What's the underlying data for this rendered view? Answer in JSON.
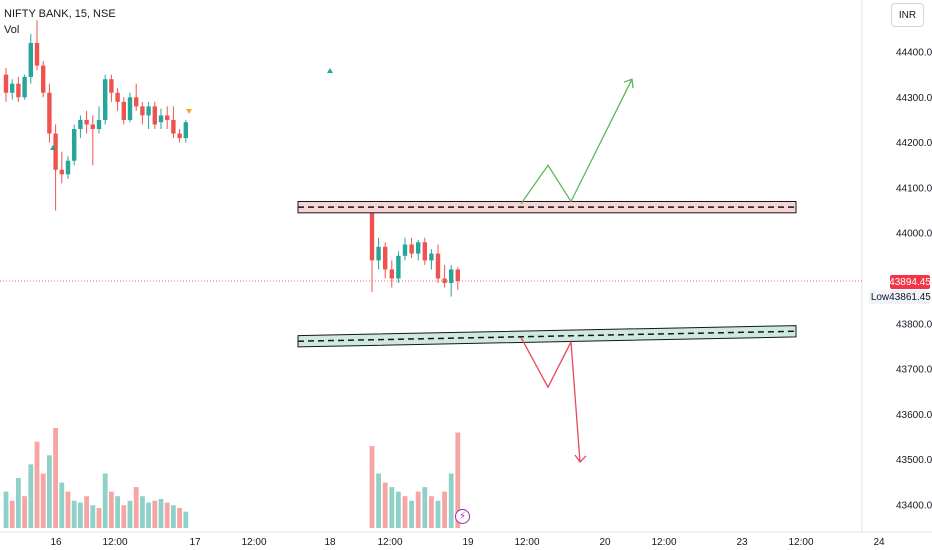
{
  "header": {
    "symbol_line": "NIFTY BANK, 15, NSE",
    "volume_label": "Vol"
  },
  "currency_button": "INR",
  "price_axis": {
    "ticks": [
      "44400.00",
      "44300.00",
      "44200.00",
      "44100.00",
      "44000.00",
      "43800.00",
      "43700.00",
      "43600.00",
      "43500.00",
      "43400.00"
    ],
    "current_price": "43894.45",
    "low_label": "Low",
    "low_price": "43861.45"
  },
  "time_axis": {
    "ticks": [
      "16",
      "12:00",
      "17",
      "12:00",
      "18",
      "12:00",
      "19",
      "12:00",
      "20",
      "12:00",
      "23",
      "12:00",
      "24"
    ]
  },
  "colors": {
    "up": "#26a69a",
    "down": "#ef5350",
    "vol_up": "#8fd1c9",
    "vol_down": "#f5a5a3",
    "resistance_fill": "#f7d4d4",
    "support_fill": "#cfe9dd",
    "bull_arrow": "#5cb85c",
    "bear_arrow": "#e8485a"
  },
  "chart_data": {
    "type": "candlestick",
    "title": "NIFTY BANK, 15, NSE",
    "y_range": [
      43350,
      44470
    ],
    "candles": [
      {
        "x": "16 09:15",
        "o": 44350,
        "h": 44365,
        "l": 44290,
        "c": 44310
      },
      {
        "x": "16 09:30",
        "o": 44310,
        "h": 44340,
        "l": 44295,
        "c": 44330
      },
      {
        "x": "16 09:45",
        "o": 44330,
        "h": 44345,
        "l": 44290,
        "c": 44300
      },
      {
        "x": "16 10:00",
        "o": 44300,
        "h": 44350,
        "l": 44295,
        "c": 44345
      },
      {
        "x": "16 10:15",
        "o": 44345,
        "h": 44440,
        "l": 44330,
        "c": 44420
      },
      {
        "x": "16 10:30",
        "o": 44420,
        "h": 44470,
        "l": 44360,
        "c": 44370
      },
      {
        "x": "16 10:45",
        "o": 44370,
        "h": 44380,
        "l": 44300,
        "c": 44310
      },
      {
        "x": "16 11:00",
        "o": 44310,
        "h": 44330,
        "l": 44200,
        "c": 44220
      },
      {
        "x": "16 11:15",
        "o": 44220,
        "h": 44240,
        "l": 44050,
        "c": 44140
      },
      {
        "x": "16 11:30",
        "o": 44140,
        "h": 44180,
        "l": 44110,
        "c": 44130
      },
      {
        "x": "16 11:45",
        "o": 44130,
        "h": 44170,
        "l": 44120,
        "c": 44160
      },
      {
        "x": "16 12:00",
        "o": 44160,
        "h": 44240,
        "l": 44150,
        "c": 44230
      },
      {
        "x": "16 12:15",
        "o": 44230,
        "h": 44260,
        "l": 44210,
        "c": 44250
      },
      {
        "x": "16 12:30",
        "o": 44250,
        "h": 44270,
        "l": 44220,
        "c": 44240
      },
      {
        "x": "16 12:45",
        "o": 44240,
        "h": 44260,
        "l": 44150,
        "c": 44230
      },
      {
        "x": "16 13:00",
        "o": 44230,
        "h": 44280,
        "l": 44220,
        "c": 44250
      },
      {
        "x": "16 13:15",
        "o": 44250,
        "h": 44350,
        "l": 44240,
        "c": 44340
      },
      {
        "x": "16 13:30",
        "o": 44340,
        "h": 44350,
        "l": 44290,
        "c": 44310
      },
      {
        "x": "16 13:45",
        "o": 44310,
        "h": 44320,
        "l": 44270,
        "c": 44290
      },
      {
        "x": "16 14:00",
        "o": 44290,
        "h": 44300,
        "l": 44240,
        "c": 44250
      },
      {
        "x": "16 14:15",
        "o": 44250,
        "h": 44310,
        "l": 44245,
        "c": 44300
      },
      {
        "x": "16 14:30",
        "o": 44300,
        "h": 44330,
        "l": 44270,
        "c": 44280
      },
      {
        "x": "16 14:45",
        "o": 44280,
        "h": 44290,
        "l": 44240,
        "c": 44260
      },
      {
        "x": "16 15:00",
        "o": 44260,
        "h": 44290,
        "l": 44230,
        "c": 44280
      },
      {
        "x": "16 15:15",
        "o": 44280,
        "h": 44290,
        "l": 44230,
        "c": 44240
      },
      {
        "x": "17 09:15",
        "o": 44245,
        "h": 44275,
        "l": 44230,
        "c": 44260
      },
      {
        "x": "17 09:30",
        "o": 44260,
        "h": 44280,
        "l": 44230,
        "c": 44250
      },
      {
        "x": "17 09:45",
        "o": 44250,
        "h": 44280,
        "l": 44210,
        "c": 44220
      },
      {
        "x": "17 10:00",
        "o": 44220,
        "h": 44230,
        "l": 44200,
        "c": 44210
      },
      {
        "x": "17 10:15",
        "o": 44210,
        "h": 44250,
        "l": 44200,
        "c": 44245
      },
      {
        "x": "18 09:15",
        "o": 44060,
        "h": 44070,
        "l": 43870,
        "c": 43940
      },
      {
        "x": "18 09:30",
        "o": 43940,
        "h": 43990,
        "l": 43920,
        "c": 43970
      },
      {
        "x": "18 09:45",
        "o": 43970,
        "h": 43980,
        "l": 43900,
        "c": 43920
      },
      {
        "x": "18 10:00",
        "o": 43920,
        "h": 43940,
        "l": 43880,
        "c": 43900
      },
      {
        "x": "18 10:15",
        "o": 43900,
        "h": 43960,
        "l": 43890,
        "c": 43950
      },
      {
        "x": "18 10:30",
        "o": 43950,
        "h": 43990,
        "l": 43940,
        "c": 43975
      },
      {
        "x": "18 10:45",
        "o": 43975,
        "h": 43990,
        "l": 43945,
        "c": 43955
      },
      {
        "x": "18 11:00",
        "o": 43955,
        "h": 43985,
        "l": 43940,
        "c": 43980
      },
      {
        "x": "18 11:15",
        "o": 43980,
        "h": 43990,
        "l": 43930,
        "c": 43940
      },
      {
        "x": "18 11:30",
        "o": 43940,
        "h": 43965,
        "l": 43920,
        "c": 43955
      },
      {
        "x": "18 11:45",
        "o": 43955,
        "h": 43975,
        "l": 43890,
        "c": 43900
      },
      {
        "x": "18 12:00",
        "o": 43900,
        "h": 43930,
        "l": 43880,
        "c": 43890
      },
      {
        "x": "18 12:15",
        "o": 43890,
        "h": 43930,
        "l": 43860,
        "c": 43920
      },
      {
        "x": "18 12:30",
        "o": 43920,
        "h": 43925,
        "l": 43875,
        "c": 43894.45
      }
    ],
    "volumes": [
      {
        "v": 40,
        "up": true
      },
      {
        "v": 30,
        "up": false
      },
      {
        "v": 55,
        "up": true
      },
      {
        "v": 35,
        "up": false
      },
      {
        "v": 70,
        "up": true
      },
      {
        "v": 95,
        "up": false
      },
      {
        "v": 60,
        "up": false
      },
      {
        "v": 80,
        "up": true
      },
      {
        "v": 110,
        "up": false
      },
      {
        "v": 50,
        "up": true
      },
      {
        "v": 40,
        "up": false
      },
      {
        "v": 30,
        "up": true
      },
      {
        "v": 28,
        "up": true
      },
      {
        "v": 35,
        "up": false
      },
      {
        "v": 25,
        "up": true
      },
      {
        "v": 22,
        "up": false
      },
      {
        "v": 60,
        "up": true
      },
      {
        "v": 40,
        "up": false
      },
      {
        "v": 35,
        "up": true
      },
      {
        "v": 25,
        "up": false
      },
      {
        "v": 30,
        "up": true
      },
      {
        "v": 45,
        "up": false
      },
      {
        "v": 35,
        "up": true
      },
      {
        "v": 28,
        "up": true
      },
      {
        "v": 30,
        "up": false
      },
      {
        "v": 32,
        "up": true
      },
      {
        "v": 28,
        "up": false
      },
      {
        "v": 25,
        "up": true
      },
      {
        "v": 22,
        "up": false
      },
      {
        "v": 18,
        "up": true
      },
      {
        "v": 90,
        "up": false
      },
      {
        "v": 60,
        "up": true
      },
      {
        "v": 50,
        "up": false
      },
      {
        "v": 45,
        "up": true
      },
      {
        "v": 40,
        "up": true
      },
      {
        "v": 35,
        "up": false
      },
      {
        "v": 30,
        "up": true
      },
      {
        "v": 40,
        "up": false
      },
      {
        "v": 45,
        "up": true
      },
      {
        "v": 35,
        "up": false
      },
      {
        "v": 30,
        "up": true
      },
      {
        "v": 40,
        "up": false
      },
      {
        "v": 60,
        "up": true
      },
      {
        "v": 105,
        "up": false
      }
    ],
    "annotations": {
      "resistance_zone": [
        44045,
        44070
      ],
      "support_zone": [
        43760,
        43785
      ],
      "bullish_path": [
        44065,
        44150,
        44070,
        44340
      ],
      "bearish_path": [
        43770,
        43660,
        43760,
        43495
      ]
    }
  }
}
